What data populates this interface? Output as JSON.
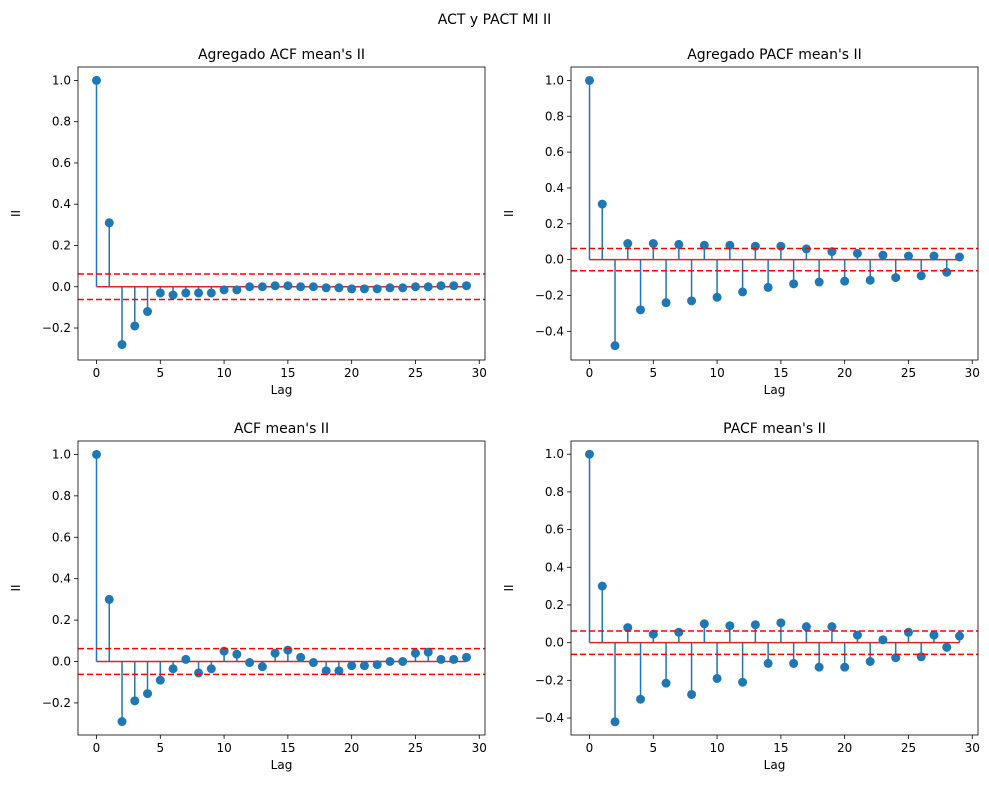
{
  "suptitle": "ACT y PACT MI II",
  "colors": {
    "stem": "#1f77b4",
    "baseline": "#d62728",
    "conf": "#ff0000"
  },
  "chart_data": [
    {
      "type": "stem",
      "title": "Agregado ACF mean's II",
      "xlabel": "Lag",
      "ylabel": "II",
      "xlim": [
        -1.45,
        30.45
      ],
      "ylim": [
        -0.355,
        1.065
      ],
      "xticks": [
        0,
        5,
        10,
        15,
        20,
        25,
        30
      ],
      "yticks": [
        -0.2,
        0.0,
        0.2,
        0.4,
        0.6,
        0.8,
        1.0
      ],
      "ytick_labels": [
        "−0.2",
        "0.0",
        "0.2",
        "0.4",
        "0.6",
        "0.8",
        "1.0"
      ],
      "conf": 0.062,
      "x": [
        0,
        1,
        2,
        3,
        4,
        5,
        6,
        7,
        8,
        9,
        10,
        11,
        12,
        13,
        14,
        15,
        16,
        17,
        18,
        19,
        20,
        21,
        22,
        23,
        24,
        25,
        26,
        27,
        28,
        29
      ],
      "y": [
        1.0,
        0.31,
        -0.28,
        -0.19,
        -0.12,
        -0.03,
        -0.04,
        -0.03,
        -0.03,
        -0.03,
        -0.015,
        -0.015,
        0.0,
        0.0,
        0.005,
        0.005,
        0.0,
        0.0,
        -0.005,
        -0.005,
        -0.01,
        -0.01,
        -0.01,
        -0.005,
        -0.005,
        0.0,
        0.0,
        0.005,
        0.005,
        0.005
      ]
    },
    {
      "type": "stem",
      "title": "Agregado PACF mean's II",
      "xlabel": "Lag",
      "ylabel": "II",
      "xlim": [
        -1.45,
        30.45
      ],
      "ylim": [
        -0.56,
        1.075
      ],
      "xticks": [
        0,
        5,
        10,
        15,
        20,
        25,
        30
      ],
      "yticks": [
        -0.4,
        -0.2,
        0.0,
        0.2,
        0.4,
        0.6,
        0.8,
        1.0
      ],
      "ytick_labels": [
        "−0.4",
        "−0.2",
        "0.0",
        "0.2",
        "0.4",
        "0.6",
        "0.8",
        "1.0"
      ],
      "conf": 0.062,
      "x": [
        0,
        1,
        2,
        3,
        4,
        5,
        6,
        7,
        8,
        9,
        10,
        11,
        12,
        13,
        14,
        15,
        16,
        17,
        18,
        19,
        20,
        21,
        22,
        23,
        24,
        25,
        26,
        27,
        28,
        29
      ],
      "y": [
        1.0,
        0.31,
        -0.48,
        0.09,
        -0.28,
        0.09,
        -0.24,
        0.085,
        -0.23,
        0.08,
        -0.21,
        0.08,
        -0.18,
        0.075,
        -0.155,
        0.075,
        -0.135,
        0.06,
        -0.125,
        0.045,
        -0.12,
        0.035,
        -0.115,
        0.025,
        -0.1,
        0.02,
        -0.09,
        0.02,
        -0.07,
        0.015
      ]
    },
    {
      "type": "stem",
      "title": "ACF mean's II",
      "xlabel": "Lag",
      "ylabel": "II",
      "xlim": [
        -1.45,
        30.45
      ],
      "ylim": [
        -0.355,
        1.065
      ],
      "xticks": [
        0,
        5,
        10,
        15,
        20,
        25,
        30
      ],
      "yticks": [
        -0.2,
        0.0,
        0.2,
        0.4,
        0.6,
        0.8,
        1.0
      ],
      "ytick_labels": [
        "−0.2",
        "0.0",
        "0.2",
        "0.4",
        "0.6",
        "0.8",
        "1.0"
      ],
      "conf": 0.062,
      "x": [
        0,
        1,
        2,
        3,
        4,
        5,
        6,
        7,
        8,
        9,
        10,
        11,
        12,
        13,
        14,
        15,
        16,
        17,
        18,
        19,
        20,
        21,
        22,
        23,
        24,
        25,
        26,
        27,
        28,
        29
      ],
      "y": [
        1.0,
        0.3,
        -0.29,
        -0.19,
        -0.155,
        -0.09,
        -0.035,
        0.01,
        -0.055,
        -0.035,
        0.05,
        0.035,
        -0.005,
        -0.025,
        0.04,
        0.055,
        0.02,
        -0.005,
        -0.045,
        -0.045,
        -0.02,
        -0.02,
        -0.015,
        0.0,
        0.0,
        0.04,
        0.045,
        0.01,
        0.01,
        0.02
      ]
    },
    {
      "type": "stem",
      "title": "PACF mean's II",
      "xlabel": "Lag",
      "ylabel": "II",
      "xlim": [
        -1.45,
        30.45
      ],
      "ylim": [
        -0.49,
        1.07
      ],
      "xticks": [
        0,
        5,
        10,
        15,
        20,
        25,
        30
      ],
      "yticks": [
        -0.4,
        -0.2,
        0.0,
        0.2,
        0.4,
        0.6,
        0.8,
        1.0
      ],
      "ytick_labels": [
        "−0.4",
        "−0.2",
        "0.0",
        "0.2",
        "0.4",
        "0.6",
        "0.8",
        "1.0"
      ],
      "conf": 0.062,
      "x": [
        0,
        1,
        2,
        3,
        4,
        5,
        6,
        7,
        8,
        9,
        10,
        11,
        12,
        13,
        14,
        15,
        16,
        17,
        18,
        19,
        20,
        21,
        22,
        23,
        24,
        25,
        26,
        27,
        28,
        29
      ],
      "y": [
        1.0,
        0.3,
        -0.42,
        0.08,
        -0.3,
        0.045,
        -0.215,
        0.055,
        -0.275,
        0.1,
        -0.19,
        0.09,
        -0.21,
        0.095,
        -0.11,
        0.105,
        -0.11,
        0.085,
        -0.13,
        0.085,
        -0.13,
        0.04,
        -0.1,
        0.015,
        -0.08,
        0.055,
        -0.075,
        0.04,
        -0.025,
        0.035
      ]
    }
  ]
}
